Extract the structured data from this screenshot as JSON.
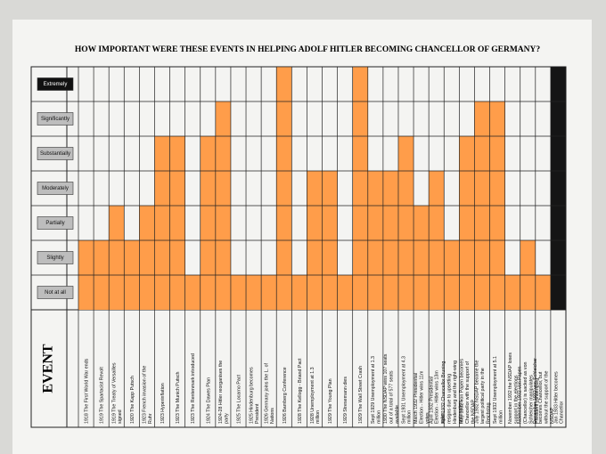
{
  "chart_data": {
    "type": "bar",
    "title": "HOW IMPORTANT WERE THESE EVENTS IN HELPING ADOLF HITLER BECOMING CHANCELLOR OF GERMANY?",
    "xlabel": "EVENT",
    "categories": [
      "1918 The First World War ends",
      "1919 The Spartacist Revolt",
      "1919 The Treaty of Versailles signed",
      "1920 The Kapp Putsch",
      "1923 French invasion of the Ruhr",
      "1923 Hyperinflation",
      "1923 The Munich Putsch",
      "1923 The Rentenmark introduced",
      "1924 The Dawes Plan",
      "1924-28 Hitler reorganises the party",
      "1925 The Locarno Pact",
      "1925 Hindenburg becomes President",
      "1926 Germany joins the L. of Nations",
      "1926 Bamberg Conference",
      "1928 The Kellogg - Briand Pact",
      "1928 Unemployment at 1.3 million",
      "1929 The Young Plan",
      "1929 Stresemann dies",
      "1929 The Wall Street Crash",
      "Sept 1929 Unemployment at 1.3 million",
      "1930 The NSDAP wins 107 seats out of a total of 577 seats available",
      "Sept 1931 Unemployment at 4.3 million",
      "March 1932 Presidential Election - Hitler wins 11m votes",
      "April 1932 Presidential Election - Hitler wins 13m votes",
      "April 1932 Chancellor Bruning resigns due to upsetting Hindenburg and the right-wing nationalists",
      "May 1932 von Papen becomes Chancellor with the support of the NSDAP",
      "July 1932 NSDAP become the largest political party in the Reichstag",
      "Sept 1932 Unemployment at 5.1 million",
      "November 1932 the NSDAP loses support in the elections",
      "November 1932 von Papen (Chancellor) is sacked as von Schleicher manipulates President Hindenburg",
      "December 1932 von Schleicher becomes Chancellor, but without the support of the NSDAP",
      "Jan 1933 Hitler becomes Chancellor"
    ],
    "values": [
      2,
      2,
      3,
      2,
      3,
      5,
      5,
      1,
      5,
      6,
      1,
      1,
      1,
      7,
      1,
      4,
      4,
      1,
      7,
      4,
      4,
      5,
      3,
      4,
      2,
      5,
      6,
      6,
      1,
      2,
      1,
      7
    ],
    "colors": [
      "#ff9d4a",
      "#ff9d4a",
      "#ff9d4a",
      "#ff9d4a",
      "#ff9d4a",
      "#ff9d4a",
      "#ff9d4a",
      "#ff9d4a",
      "#ff9d4a",
      "#ff9d4a",
      "#ff9d4a",
      "#ff9d4a",
      "#ff9d4a",
      "#ff9d4a",
      "#ff9d4a",
      "#ff9d4a",
      "#ff9d4a",
      "#ff9d4a",
      "#ff9d4a",
      "#ff9d4a",
      "#ff9d4a",
      "#ff9d4a",
      "#ff9d4a",
      "#ff9d4a",
      "#ff9d4a",
      "#ff9d4a",
      "#ff9d4a",
      "#ff9d4a",
      "#ff9d4a",
      "#ff9d4a",
      "#ff9d4a",
      "#151515"
    ],
    "ylim": [
      0,
      7
    ],
    "yticks": [
      {
        "value": 1,
        "label": "Not at all"
      },
      {
        "value": 2,
        "label": "Slightly"
      },
      {
        "value": 3,
        "label": "Partially"
      },
      {
        "value": 4,
        "label": "Moderately"
      },
      {
        "value": 5,
        "label": "Substantially"
      },
      {
        "value": 6,
        "label": "Significantly"
      },
      {
        "value": 7,
        "label": "Extremely"
      }
    ],
    "grid": true
  }
}
